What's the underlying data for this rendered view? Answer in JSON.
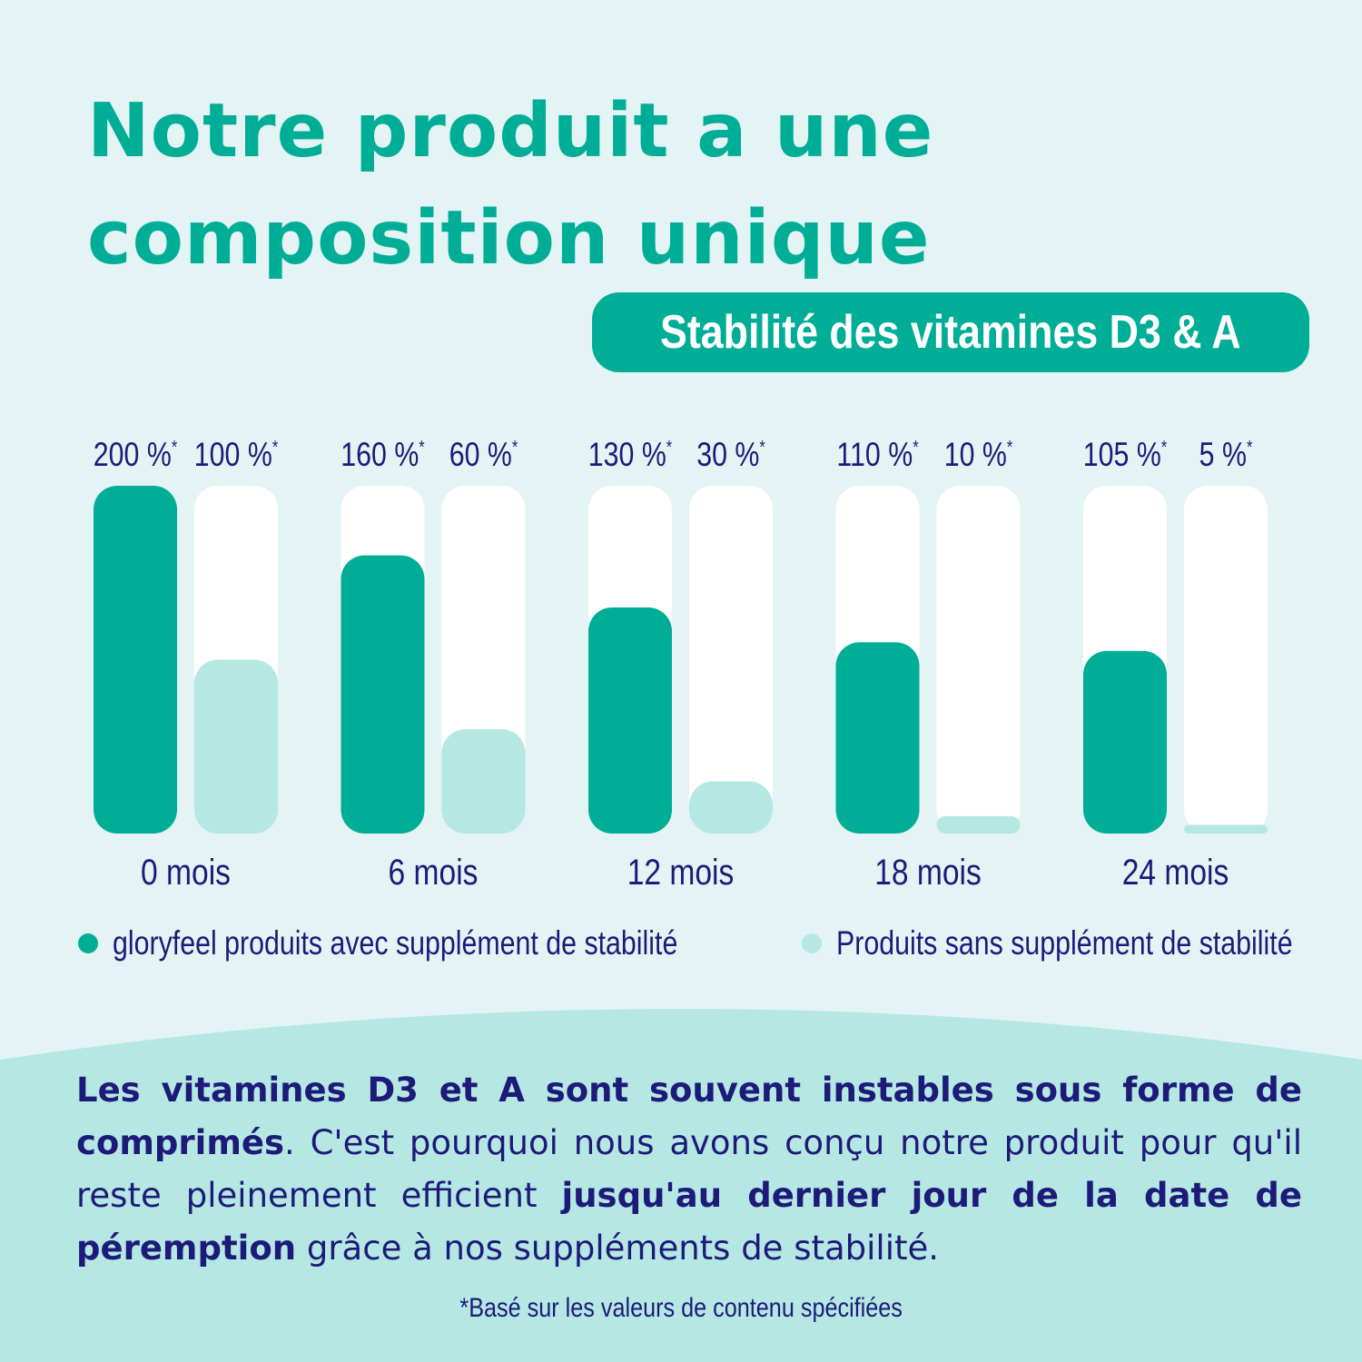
{
  "headline": {
    "line1": "Notre produit a une",
    "line2": "composition unique"
  },
  "badge": "Stabilité des vitamines D3 & A",
  "colors": {
    "primary": "#00ae98",
    "secondary": "#b5e8e2",
    "track": "#ffffff",
    "text": "#1d1a7a",
    "background": "#e4f4f4"
  },
  "chart_data": {
    "type": "bar",
    "title": "Stabilité des vitamines D3 & A",
    "categories": [
      "0 mois",
      "6 mois",
      "12 mois",
      "18 mois",
      "24 mois"
    ],
    "series": [
      {
        "name": "gloryfeel produits avec supplément de stabilité",
        "values": [
          200,
          160,
          130,
          110,
          105
        ],
        "labels": [
          "200 %",
          "160 %",
          "130 %",
          "110 %",
          "105 %"
        ]
      },
      {
        "name": "Produits sans supplément de stabilité",
        "values": [
          100,
          60,
          30,
          10,
          5
        ],
        "labels": [
          "100 %",
          "60 %",
          "30 %",
          "10 %",
          "5 %"
        ]
      }
    ],
    "label_marker": "*",
    "ylim": [
      0,
      200
    ],
    "xlabel": "",
    "ylabel": ""
  },
  "legend": {
    "item1": "gloryfeel produits avec supplément de stabilité",
    "item2": "Produits sans supplément de stabilité"
  },
  "description": {
    "bold1": "Les vitamines D3 et A sont souvent instables sous forme de comprimés",
    "text1": ". C'est pourquoi nous avons conçu notre produit pour qu'il reste pleinement efficient ",
    "bold2": "jusqu'au dernier jour de la date de péremption",
    "text2": " grâce à nos suppléments de stabilité."
  },
  "footnote": "*Basé sur les valeurs de contenu spécifiées"
}
